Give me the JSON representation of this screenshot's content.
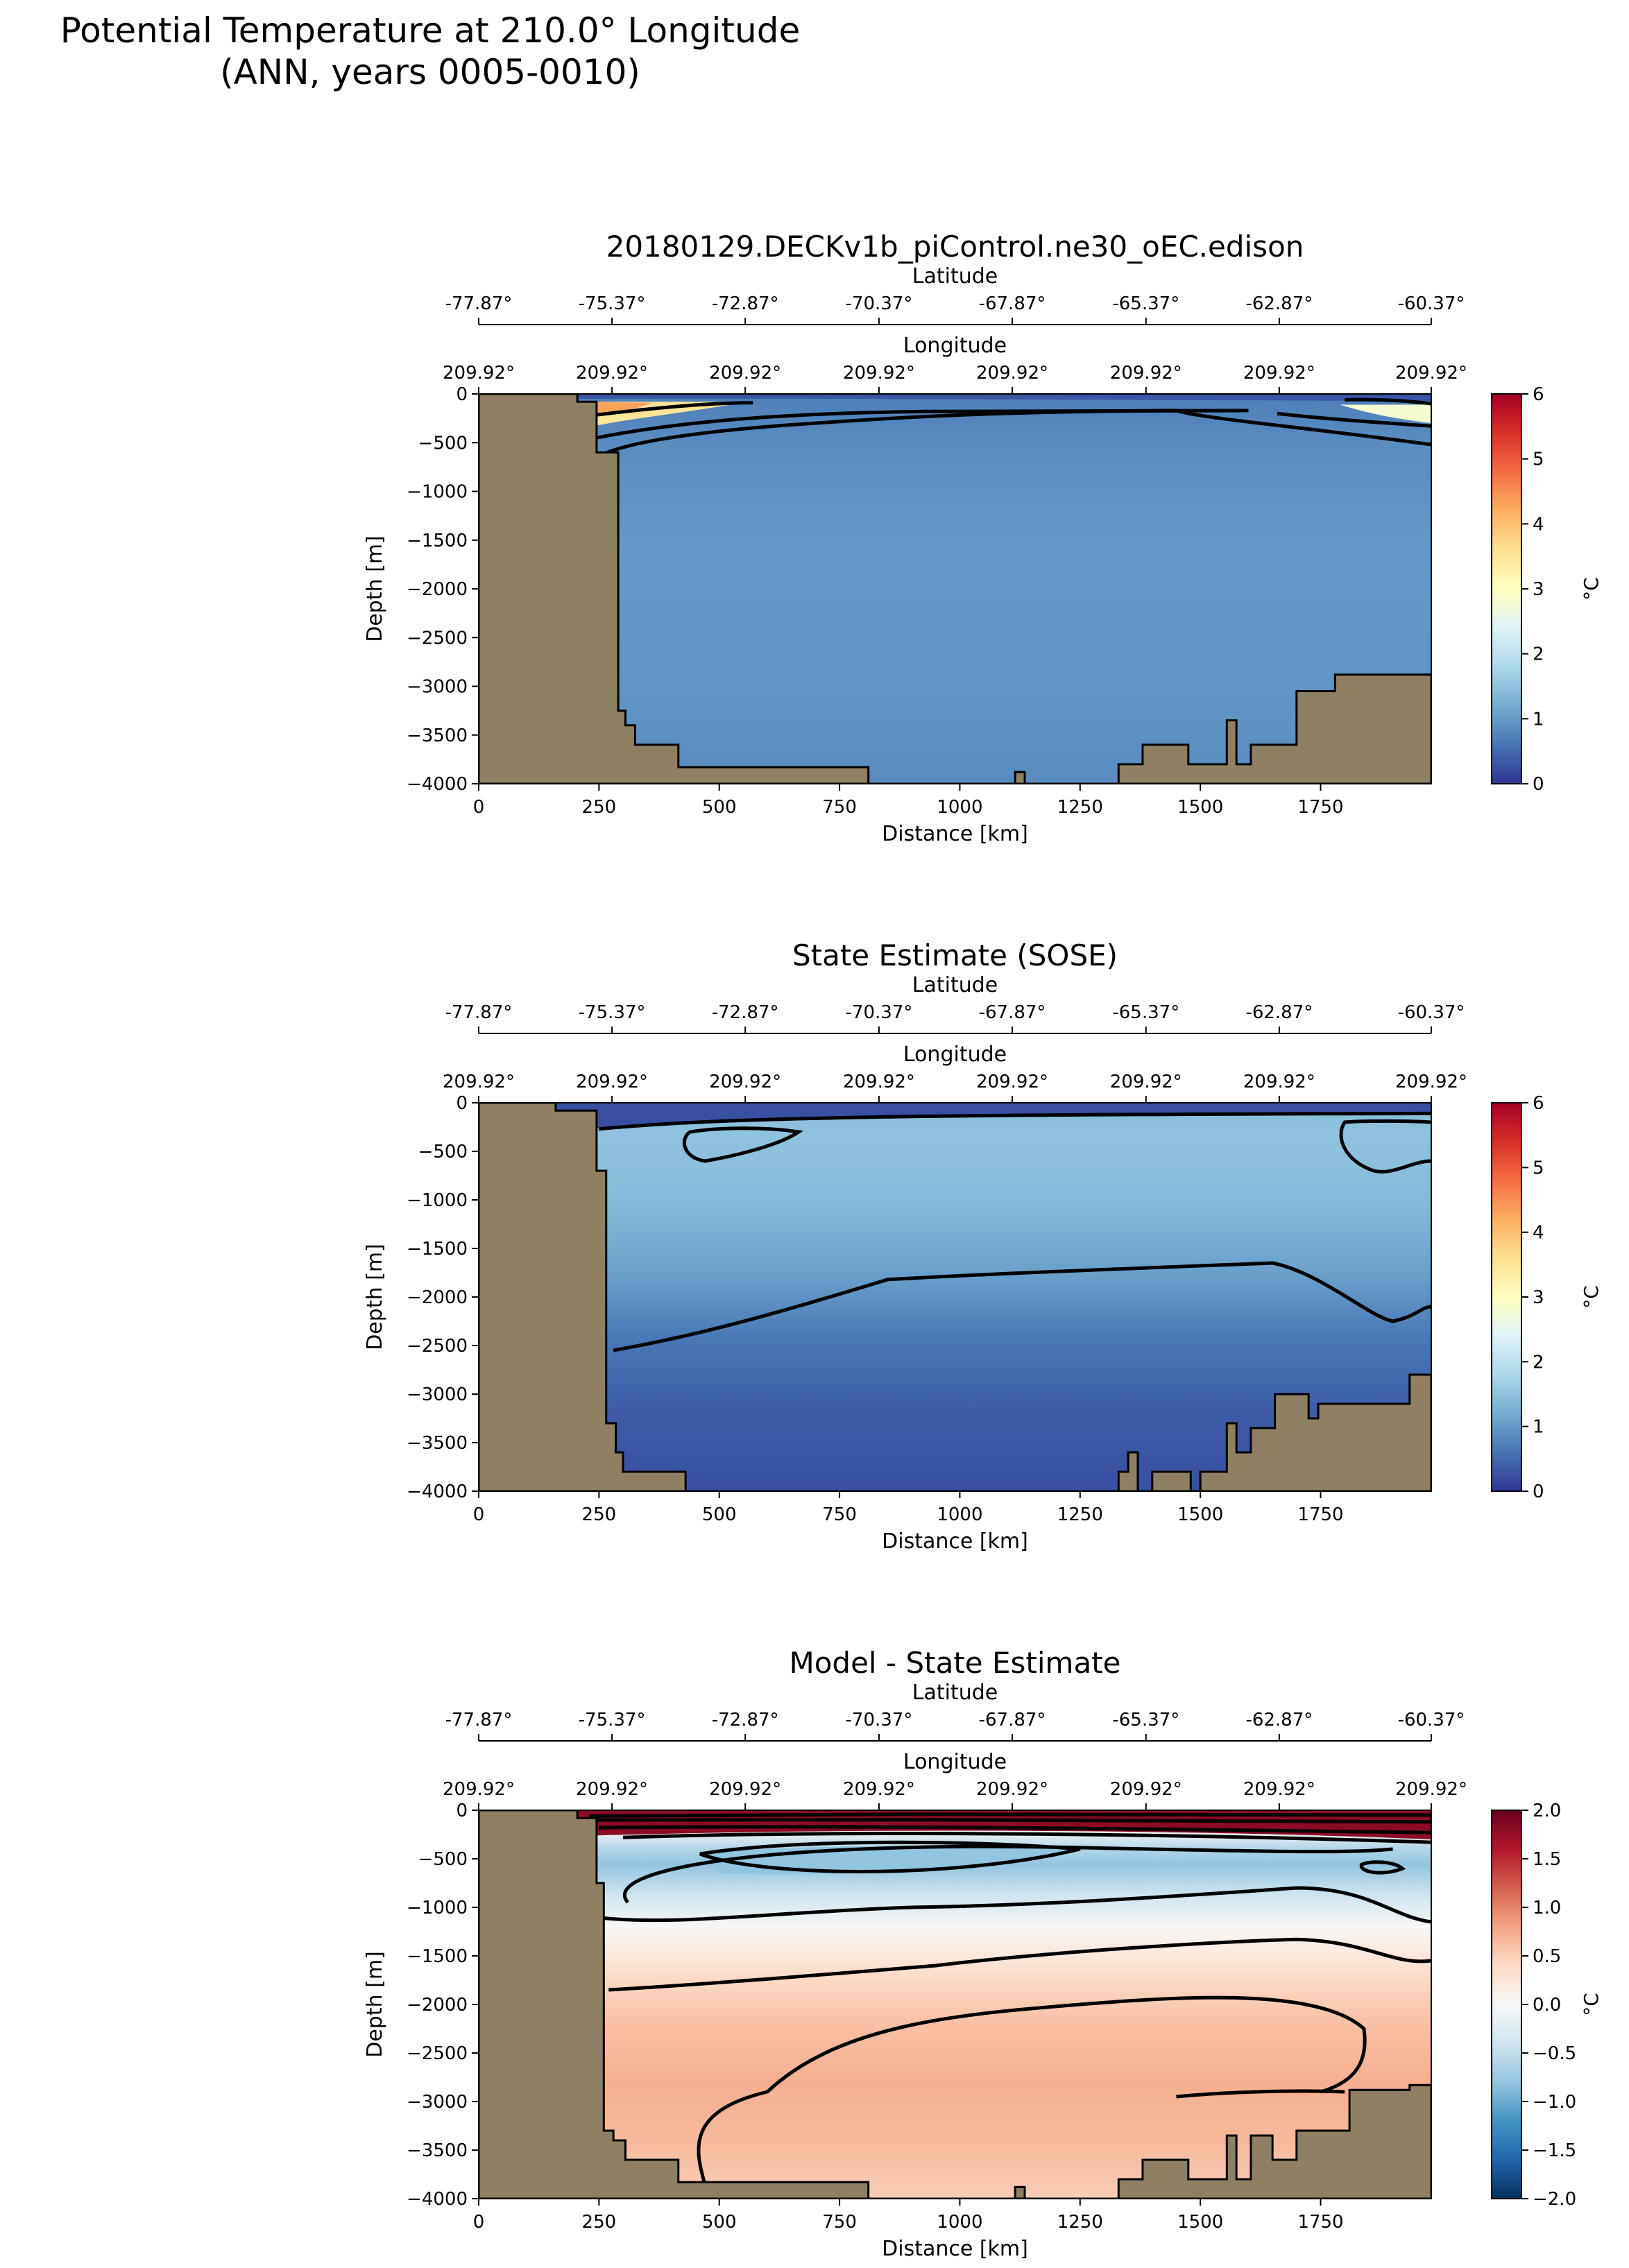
{
  "figure": {
    "suptitle_line1": "Potential Temperature at 210.0° Longitude",
    "suptitle_line2": "(ANN, years 0005-0010)",
    "land_color": "#8f8064"
  },
  "chart_data": [
    {
      "type": "heatmap",
      "title": "20180129.DECKv1b_piControl.ne30_oEC.edison",
      "xlabel": "Distance [km]",
      "ylabel": "Depth [m]",
      "xlim": [
        0,
        1980
      ],
      "ylim": [
        -4000,
        0
      ],
      "x_ticks": [
        "0",
        "250",
        "500",
        "750",
        "1000",
        "1250",
        "1500",
        "1750"
      ],
      "y_ticks": [
        "0",
        "−500",
        "−1000",
        "−1500",
        "−2000",
        "−2500",
        "−3000",
        "−3500",
        "−4000"
      ],
      "top_axis_1": {
        "label": "Latitude",
        "ticks": [
          "-77.87°",
          "-75.37°",
          "-72.87°",
          "-70.37°",
          "-67.87°",
          "-65.37°",
          "-62.87°",
          "-60.37°"
        ]
      },
      "top_axis_2": {
        "label": "Longitude",
        "ticks": [
          "209.92°",
          "209.92°",
          "209.92°",
          "209.92°",
          "209.92°",
          "209.92°",
          "209.92°",
          "209.92°"
        ]
      },
      "colorbar": {
        "label": "°C",
        "range": [
          0,
          6
        ],
        "ticks": [
          "0",
          "1",
          "2",
          "3",
          "4",
          "5",
          "6"
        ],
        "colormap": "RdYlBu_r"
      },
      "contour_levels": [
        0.5,
        1.0,
        2.0,
        3.0
      ],
      "surface_layer": {
        "temperature": 0.1,
        "depth_east": -60
      },
      "interior": {
        "temperature": 0.9
      },
      "shelf_water": {
        "temperature_west": 3.5,
        "temperature_east": 2.8
      },
      "bathymetry": [
        [
          0,
          0
        ],
        [
          205,
          0
        ],
        [
          205,
          -80
        ],
        [
          245,
          -80
        ],
        [
          245,
          -600
        ],
        [
          290,
          -600
        ],
        [
          290,
          -3250
        ],
        [
          305,
          -3250
        ],
        [
          305,
          -3400
        ],
        [
          325,
          -3400
        ],
        [
          325,
          -3600
        ],
        [
          415,
          -3600
        ],
        [
          415,
          -3830
        ],
        [
          810,
          -3830
        ],
        [
          810,
          -4000
        ],
        [
          1115,
          -4000
        ],
        [
          1115,
          -3880
        ],
        [
          1135,
          -3880
        ],
        [
          1135,
          -4000
        ],
        [
          1330,
          -4000
        ],
        [
          1330,
          -3800
        ],
        [
          1380,
          -3800
        ],
        [
          1380,
          -3600
        ],
        [
          1475,
          -3600
        ],
        [
          1475,
          -3800
        ],
        [
          1555,
          -3800
        ],
        [
          1555,
          -3350
        ],
        [
          1575,
          -3350
        ],
        [
          1575,
          -3800
        ],
        [
          1605,
          -3800
        ],
        [
          1605,
          -3600
        ],
        [
          1700,
          -3600
        ],
        [
          1700,
          -3050
        ],
        [
          1780,
          -3050
        ],
        [
          1780,
          -2880
        ],
        [
          1980,
          -2880
        ]
      ]
    },
    {
      "type": "heatmap",
      "title": "State Estimate (SOSE)",
      "xlabel": "Distance [km]",
      "ylabel": "Depth [m]",
      "xlim": [
        0,
        1980
      ],
      "ylim": [
        -4000,
        0
      ],
      "x_ticks": [
        "0",
        "250",
        "500",
        "750",
        "1000",
        "1250",
        "1500",
        "1750"
      ],
      "y_ticks": [
        "0",
        "−500",
        "−1000",
        "−1500",
        "−2000",
        "−2500",
        "−3000",
        "−3500",
        "−4000"
      ],
      "top_axis_1": {
        "label": "Latitude",
        "ticks": [
          "-77.87°",
          "-75.37°",
          "-72.87°",
          "-70.37°",
          "-67.87°",
          "-65.37°",
          "-62.87°",
          "-60.37°"
        ]
      },
      "top_axis_2": {
        "label": "Longitude",
        "ticks": [
          "209.92°",
          "209.92°",
          "209.92°",
          "209.92°",
          "209.92°",
          "209.92°",
          "209.92°",
          "209.92°"
        ]
      },
      "colorbar": {
        "label": "°C",
        "range": [
          0,
          6
        ],
        "ticks": [
          "0",
          "1",
          "2",
          "3",
          "4",
          "5",
          "6"
        ],
        "colormap": "RdYlBu_r"
      },
      "contour_levels": [
        0.5,
        1.0,
        2.0
      ],
      "surface_layer": {
        "temperature": 0.2,
        "depth_east": -90
      },
      "upper_water": {
        "temperature": 1.5
      },
      "deep_water": {
        "temperature": 0.3
      },
      "bathymetry": [
        [
          0,
          0
        ],
        [
          160,
          0
        ],
        [
          160,
          -80
        ],
        [
          245,
          -80
        ],
        [
          245,
          -700
        ],
        [
          265,
          -700
        ],
        [
          265,
          -3300
        ],
        [
          285,
          -3300
        ],
        [
          285,
          -3600
        ],
        [
          300,
          -3600
        ],
        [
          300,
          -3800
        ],
        [
          430,
          -3800
        ],
        [
          430,
          -4000
        ],
        [
          1330,
          -4000
        ],
        [
          1330,
          -3800
        ],
        [
          1350,
          -3800
        ],
        [
          1350,
          -3600
        ],
        [
          1370,
          -3600
        ],
        [
          1370,
          -4000
        ],
        [
          1400,
          -4000
        ],
        [
          1400,
          -3800
        ],
        [
          1480,
          -3800
        ],
        [
          1480,
          -4000
        ],
        [
          1500,
          -4000
        ],
        [
          1500,
          -3800
        ],
        [
          1555,
          -3800
        ],
        [
          1555,
          -3300
        ],
        [
          1575,
          -3300
        ],
        [
          1575,
          -3600
        ],
        [
          1605,
          -3600
        ],
        [
          1605,
          -3350
        ],
        [
          1655,
          -3350
        ],
        [
          1655,
          -3000
        ],
        [
          1725,
          -3000
        ],
        [
          1725,
          -3250
        ],
        [
          1745,
          -3250
        ],
        [
          1745,
          -3100
        ],
        [
          1935,
          -3100
        ],
        [
          1935,
          -2800
        ],
        [
          1980,
          -2800
        ]
      ]
    },
    {
      "type": "heatmap",
      "title": "Model - State Estimate",
      "xlabel": "Distance [km]",
      "ylabel": "Depth [m]",
      "xlim": [
        0,
        1980
      ],
      "ylim": [
        -4000,
        0
      ],
      "x_ticks": [
        "0",
        "250",
        "500",
        "750",
        "1000",
        "1250",
        "1500",
        "1750"
      ],
      "y_ticks": [
        "0",
        "−500",
        "−1000",
        "−1500",
        "−2000",
        "−2500",
        "−3000",
        "−3500",
        "−4000"
      ],
      "top_axis_1": {
        "label": "Latitude",
        "ticks": [
          "-77.87°",
          "-75.37°",
          "-72.87°",
          "-70.37°",
          "-67.87°",
          "-65.37°",
          "-62.87°",
          "-60.37°"
        ]
      },
      "top_axis_2": {
        "label": "Longitude",
        "ticks": [
          "209.92°",
          "209.92°",
          "209.92°",
          "209.92°",
          "209.92°",
          "209.92°",
          "209.92°",
          "209.92°"
        ]
      },
      "colorbar": {
        "label": "°C",
        "range": [
          -2,
          2
        ],
        "ticks": [
          "−2.0",
          "−1.5",
          "−1.0",
          "−0.5",
          "0.0",
          "0.5",
          "1.0",
          "1.5",
          "2.0"
        ],
        "colormap": "RdBu_r"
      },
      "contour_levels": [
        -0.75,
        -0.5,
        -0.25,
        0.0,
        0.25,
        0.5,
        0.75,
        1.0,
        1.5
      ],
      "surface_difference": 1.8,
      "subsurface_minimum": -0.9,
      "deep_maximum": 0.75,
      "bathymetry": [
        [
          0,
          0
        ],
        [
          205,
          0
        ],
        [
          205,
          -80
        ],
        [
          245,
          -80
        ],
        [
          245,
          -750
        ],
        [
          260,
          -750
        ],
        [
          260,
          -3300
        ],
        [
          280,
          -3300
        ],
        [
          280,
          -3400
        ],
        [
          305,
          -3400
        ],
        [
          305,
          -3600
        ],
        [
          415,
          -3600
        ],
        [
          415,
          -3830
        ],
        [
          810,
          -3830
        ],
        [
          810,
          -4000
        ],
        [
          1115,
          -4000
        ],
        [
          1115,
          -3880
        ],
        [
          1135,
          -3880
        ],
        [
          1135,
          -4000
        ],
        [
          1330,
          -4000
        ],
        [
          1330,
          -3800
        ],
        [
          1380,
          -3800
        ],
        [
          1380,
          -3600
        ],
        [
          1475,
          -3600
        ],
        [
          1475,
          -3800
        ],
        [
          1555,
          -3800
        ],
        [
          1555,
          -3350
        ],
        [
          1575,
          -3350
        ],
        [
          1575,
          -3800
        ],
        [
          1605,
          -3800
        ],
        [
          1605,
          -3350
        ],
        [
          1650,
          -3350
        ],
        [
          1650,
          -3600
        ],
        [
          1700,
          -3600
        ],
        [
          1700,
          -3300
        ],
        [
          1810,
          -3300
        ],
        [
          1810,
          -2880
        ],
        [
          1935,
          -2880
        ],
        [
          1935,
          -2830
        ],
        [
          1980,
          -2830
        ]
      ]
    }
  ]
}
